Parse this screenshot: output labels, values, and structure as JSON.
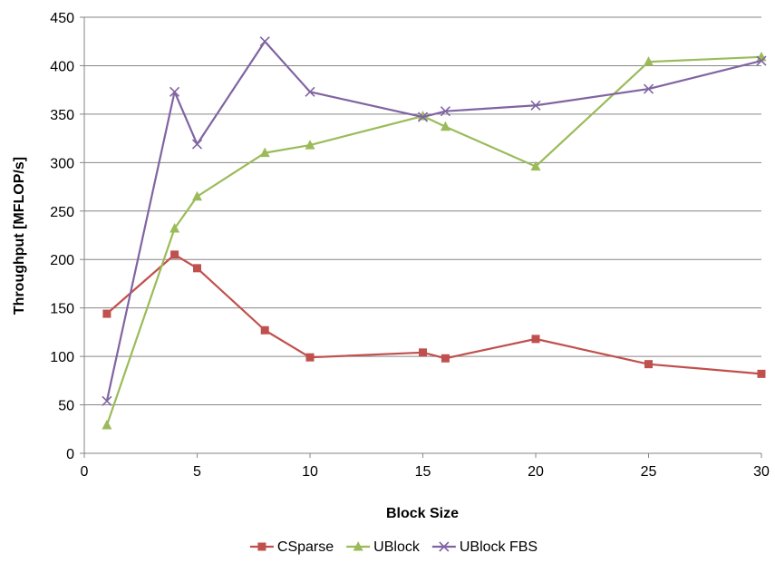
{
  "chart_data": {
    "type": "line",
    "title": "",
    "xlabel": "Block Size",
    "ylabel": "Throughput [MFLOP/s]",
    "xlim": [
      0,
      30
    ],
    "ylim": [
      0,
      450
    ],
    "xticks": [
      0,
      5,
      10,
      15,
      20,
      25,
      30
    ],
    "xtick_labels": [
      "0",
      "5",
      "10",
      "15",
      "20",
      "25",
      "30"
    ],
    "yticks": [
      0,
      50,
      100,
      150,
      200,
      250,
      300,
      350,
      400,
      450
    ],
    "ytick_labels": [
      "0",
      "50",
      "100",
      "150",
      "200",
      "250",
      "300",
      "350",
      "400",
      "450"
    ],
    "grid": "horizontal",
    "legend_position": "bottom",
    "series": [
      {
        "name": "CSparse",
        "color": "#c0504d",
        "marker": "square",
        "x": [
          1,
          4,
          5,
          8,
          10,
          15,
          16,
          20,
          25,
          30
        ],
        "y": [
          144,
          205,
          191,
          127,
          99,
          104,
          98,
          118,
          92,
          82
        ]
      },
      {
        "name": "UBlock",
        "color": "#9bbb59",
        "marker": "triangle",
        "x": [
          1,
          4,
          5,
          8,
          10,
          15,
          16,
          20,
          25,
          30
        ],
        "y": [
          29,
          232,
          265,
          310,
          318,
          348,
          337,
          296,
          404,
          409
        ]
      },
      {
        "name": "UBlock FBS",
        "color": "#8064a2",
        "marker": "x",
        "x": [
          1,
          4,
          5,
          8,
          10,
          15,
          16,
          20,
          25,
          30
        ],
        "y": [
          54,
          373,
          319,
          425,
          373,
          347,
          353,
          359,
          376,
          405
        ]
      }
    ]
  }
}
